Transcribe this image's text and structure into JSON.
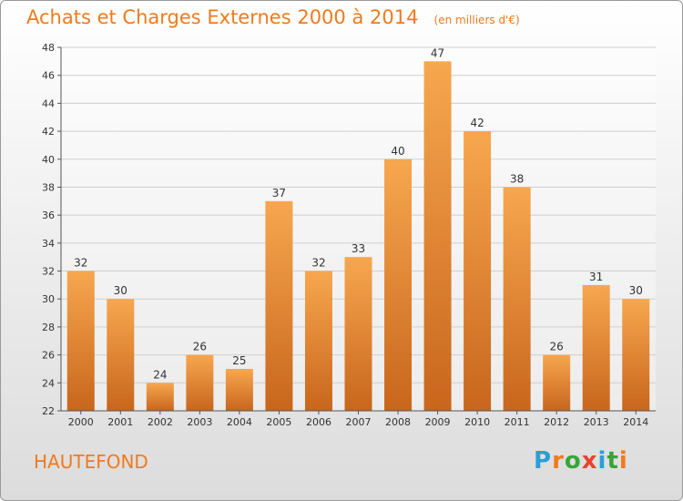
{
  "header": {
    "title": "Achats et Charges Externes 2000 à 2014",
    "subtitle": "(en milliers d'€)"
  },
  "footer": {
    "commune": "HAUTEFOND",
    "logo": "Proxiti"
  },
  "colors": {
    "accent": "#f07a1c",
    "bar_top": "#f7a74f",
    "bar_bottom": "#c8661c",
    "logo": [
      "#2a9fd6",
      "#f07a1c",
      "#37a537",
      "#e8452c",
      "#2a9fd6",
      "#37a537",
      "#f07a1c"
    ]
  },
  "chart_data": {
    "type": "bar",
    "categories": [
      "2000",
      "2001",
      "2002",
      "2003",
      "2004",
      "2005",
      "2006",
      "2007",
      "2008",
      "2009",
      "2010",
      "2011",
      "2012",
      "2013",
      "2014"
    ],
    "values": [
      32,
      30,
      24,
      26,
      25,
      37,
      32,
      33,
      40,
      47,
      42,
      38,
      26,
      31,
      30
    ],
    "ylim": [
      22,
      48
    ],
    "yticks": [
      22,
      24,
      26,
      28,
      30,
      32,
      34,
      36,
      38,
      40,
      42,
      44,
      46,
      48
    ],
    "grid": true,
    "title": "Achats et Charges Externes 2000 à 2014",
    "xlabel": "",
    "ylabel": ""
  }
}
